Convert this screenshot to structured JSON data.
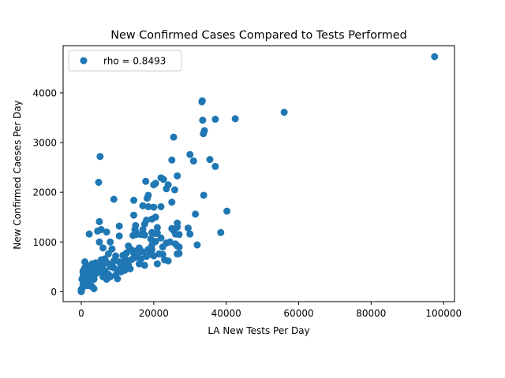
{
  "chart_data": {
    "type": "scatter",
    "title": "New Confirmed Cases Compared to Tests Performed",
    "xlabel": "LA New Tests Per Day",
    "ylabel": "New Confirmed Caeses Per Day",
    "xlim": [
      -5000,
      103000
    ],
    "ylim": [
      -200,
      4950
    ],
    "xticks": [
      0,
      20000,
      40000,
      60000,
      80000,
      100000
    ],
    "yticks": [
      0,
      1000,
      2000,
      3000,
      4000
    ],
    "grid": false,
    "legend": {
      "placement": "top-left",
      "entries": [
        "rho = 0.8493"
      ]
    },
    "point_color": "#1f77b4",
    "series": [
      {
        "name": "rho = 0.8493",
        "points": [
          [
            97500,
            4730
          ],
          [
            56000,
            3610
          ],
          [
            42500,
            3480
          ],
          [
            37000,
            3470
          ],
          [
            33500,
            3450
          ],
          [
            33300,
            3820
          ],
          [
            33400,
            3840
          ],
          [
            33700,
            3180
          ],
          [
            34000,
            3240
          ],
          [
            40200,
            1620
          ],
          [
            38500,
            1190
          ],
          [
            35500,
            2660
          ],
          [
            37000,
            2520
          ],
          [
            33800,
            1940
          ],
          [
            31000,
            2630
          ],
          [
            30000,
            2760
          ],
          [
            31500,
            1560
          ],
          [
            30000,
            1160
          ],
          [
            29500,
            1280
          ],
          [
            32000,
            940
          ],
          [
            26500,
            2330
          ],
          [
            25500,
            3110
          ],
          [
            25000,
            2650
          ],
          [
            25800,
            2050
          ],
          [
            25000,
            1800
          ],
          [
            25000,
            1270
          ],
          [
            24000,
            2150
          ],
          [
            23500,
            2070
          ],
          [
            22700,
            2260
          ],
          [
            22000,
            2290
          ],
          [
            22000,
            1710
          ],
          [
            20500,
            2180
          ],
          [
            20000,
            2150
          ],
          [
            17800,
            2220
          ],
          [
            18500,
            1940
          ],
          [
            18200,
            1880
          ],
          [
            18500,
            1710
          ],
          [
            17000,
            1730
          ],
          [
            20000,
            1700
          ],
          [
            14500,
            1840
          ],
          [
            14500,
            1540
          ],
          [
            15000,
            1330
          ],
          [
            18000,
            1440
          ],
          [
            19500,
            1460
          ],
          [
            20500,
            1500
          ],
          [
            17500,
            1360
          ],
          [
            15200,
            1150
          ],
          [
            16500,
            1150
          ],
          [
            17500,
            1140
          ],
          [
            19500,
            1190
          ],
          [
            21000,
            1290
          ],
          [
            20500,
            1170
          ],
          [
            14300,
            1130
          ],
          [
            26500,
            1380
          ],
          [
            26500,
            1300
          ],
          [
            26000,
            1160
          ],
          [
            27000,
            1150
          ],
          [
            25500,
            1230
          ],
          [
            23500,
            980
          ],
          [
            24500,
            1000
          ],
          [
            26000,
            960
          ],
          [
            26500,
            920
          ],
          [
            27000,
            900
          ],
          [
            26500,
            760
          ],
          [
            27000,
            770
          ],
          [
            23000,
            640
          ],
          [
            22500,
            750
          ],
          [
            21000,
            560
          ],
          [
            20500,
            1010
          ],
          [
            19500,
            840
          ],
          [
            20000,
            720
          ],
          [
            21500,
            760
          ],
          [
            22500,
            900
          ],
          [
            18500,
            850
          ],
          [
            18000,
            710
          ],
          [
            17500,
            530
          ],
          [
            16500,
            660
          ],
          [
            16000,
            560
          ],
          [
            15000,
            690
          ],
          [
            14500,
            820
          ],
          [
            13500,
            860
          ],
          [
            13000,
            920
          ],
          [
            12500,
            780
          ],
          [
            12000,
            690
          ],
          [
            11500,
            580
          ],
          [
            11000,
            530
          ],
          [
            10000,
            430
          ],
          [
            10500,
            1320
          ],
          [
            10500,
            1120
          ],
          [
            9000,
            1860
          ],
          [
            5200,
            2720
          ],
          [
            4800,
            2200
          ],
          [
            5000,
            1410
          ],
          [
            5500,
            1250
          ],
          [
            4500,
            1220
          ],
          [
            2200,
            1160
          ],
          [
            7000,
            1200
          ],
          [
            5000,
            1000
          ],
          [
            6000,
            880
          ],
          [
            8500,
            860
          ],
          [
            7500,
            760
          ],
          [
            9500,
            720
          ],
          [
            9000,
            620
          ],
          [
            8500,
            550
          ],
          [
            8000,
            500
          ],
          [
            7000,
            590
          ],
          [
            6000,
            540
          ],
          [
            5500,
            460
          ],
          [
            5000,
            400
          ],
          [
            4500,
            560
          ],
          [
            4500,
            520
          ],
          [
            4000,
            470
          ],
          [
            4000,
            360
          ],
          [
            3500,
            300
          ],
          [
            3500,
            250
          ],
          [
            3000,
            420
          ],
          [
            3000,
            350
          ],
          [
            2500,
            280
          ],
          [
            2500,
            200
          ],
          [
            3000,
            100
          ],
          [
            3500,
            60
          ],
          [
            2000,
            400
          ],
          [
            1500,
            520
          ],
          [
            1500,
            430
          ],
          [
            1000,
            600
          ],
          [
            1000,
            480
          ],
          [
            500,
            420
          ],
          [
            500,
            380
          ],
          [
            500,
            300
          ],
          [
            500,
            220
          ],
          [
            500,
            140
          ],
          [
            500,
            100
          ],
          [
            200,
            60
          ],
          [
            0,
            40
          ],
          [
            0,
            10
          ],
          [
            0,
            0
          ],
          [
            0,
            20
          ],
          [
            200,
            250
          ],
          [
            800,
            190
          ],
          [
            1200,
            330
          ],
          [
            1800,
            120
          ],
          [
            6000,
            300
          ],
          [
            6500,
            420
          ],
          [
            7000,
            250
          ],
          [
            7500,
            350
          ],
          [
            8000,
            300
          ],
          [
            9500,
            330
          ],
          [
            10000,
            260
          ],
          [
            11000,
            400
          ],
          [
            12000,
            430
          ],
          [
            12500,
            500
          ],
          [
            13000,
            540
          ],
          [
            13500,
            460
          ],
          [
            14000,
            650
          ],
          [
            15500,
            760
          ],
          [
            16000,
            880
          ],
          [
            17000,
            800
          ],
          [
            19000,
            750
          ],
          [
            19500,
            930
          ],
          [
            24000,
            620
          ],
          [
            22000,
            1080
          ],
          [
            21000,
            1180
          ],
          [
            17000,
            1250
          ],
          [
            14800,
            1250
          ],
          [
            19200,
            1060
          ],
          [
            15000,
            1210
          ],
          [
            6500,
            660
          ],
          [
            5500,
            640
          ],
          [
            4000,
            580
          ],
          [
            3000,
            560
          ],
          [
            2500,
            500
          ],
          [
            2000,
            340
          ],
          [
            1500,
            280
          ],
          [
            1000,
            150
          ],
          [
            8000,
            1000
          ],
          [
            9000,
            480
          ],
          [
            10500,
            600
          ],
          [
            11500,
            730
          ],
          [
            13000,
            620
          ],
          [
            14500,
            770
          ]
        ]
      }
    ]
  }
}
